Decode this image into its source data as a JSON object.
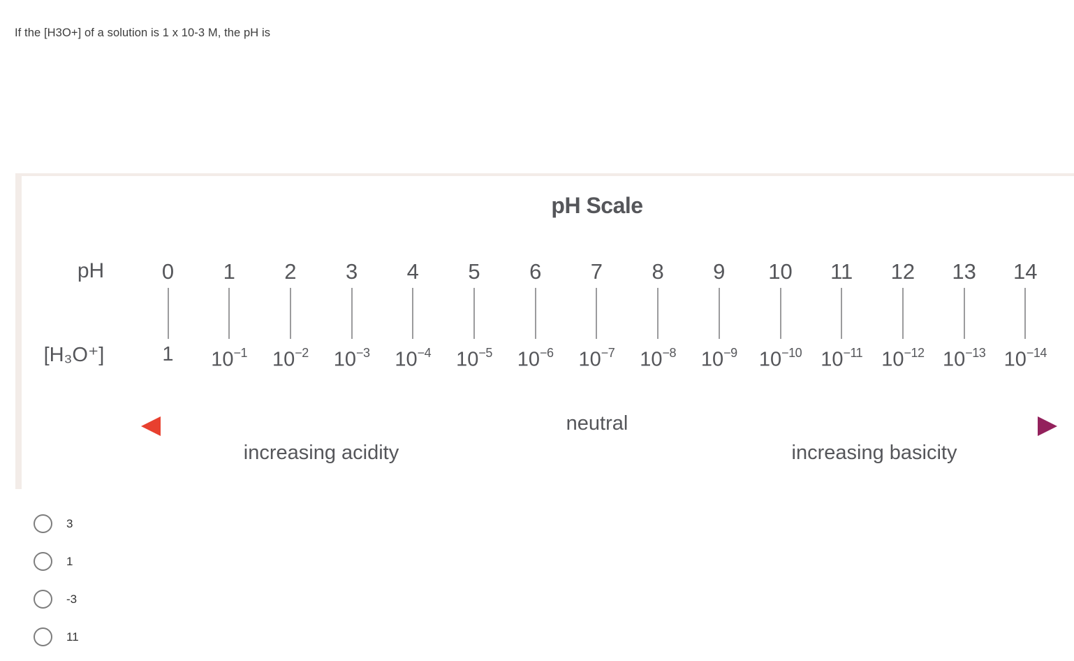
{
  "question": {
    "text": "If the [H3O+] of a solution is 1 x 10-3 M, the pH is"
  },
  "diagram": {
    "title": "pH Scale",
    "ph_row_label": "pH",
    "h3o_row_label": "[H₃O⁺]",
    "neutral_label": "neutral",
    "acidity_label": "increasing acidity",
    "basicity_label": "increasing basicity",
    "ph_values": [
      "0",
      "1",
      "2",
      "3",
      "4",
      "5",
      "6",
      "7",
      "8",
      "9",
      "10",
      "11",
      "12",
      "13",
      "14"
    ],
    "h3o_values": [
      {
        "base": "1",
        "exp": ""
      },
      {
        "base": "10",
        "exp": "−1"
      },
      {
        "base": "10",
        "exp": "−2"
      },
      {
        "base": "10",
        "exp": "−3"
      },
      {
        "base": "10",
        "exp": "−4"
      },
      {
        "base": "10",
        "exp": "−5"
      },
      {
        "base": "10",
        "exp": "−6"
      },
      {
        "base": "10",
        "exp": "−7"
      },
      {
        "base": "10",
        "exp": "−8"
      },
      {
        "base": "10",
        "exp": "−9"
      },
      {
        "base": "10",
        "exp": "−10"
      },
      {
        "base": "10",
        "exp": "−11"
      },
      {
        "base": "10",
        "exp": "−12"
      },
      {
        "base": "10",
        "exp": "−13"
      },
      {
        "base": "10",
        "exp": "−14"
      }
    ]
  },
  "colors": {
    "acid_arrow": "#e8402f",
    "base_arrow": "#93215c",
    "diagram_text": "#55565a",
    "panel_border": "#f3ece8"
  },
  "options": [
    {
      "label": "3"
    },
    {
      "label": "1"
    },
    {
      "label": "-3"
    },
    {
      "label": "11"
    }
  ]
}
